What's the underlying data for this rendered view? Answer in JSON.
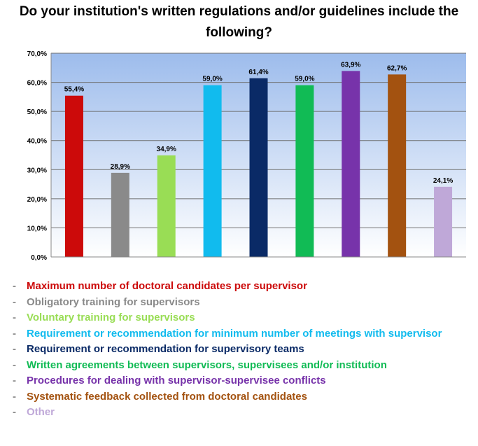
{
  "chart_data": {
    "type": "bar",
    "title": "Do your institution's written regulations and/or guidelines include the following?",
    "xlabel": "",
    "ylabel": "",
    "ylim": [
      0,
      70
    ],
    "yticks": [
      "0,0%",
      "10,0%",
      "20,0%",
      "30,0%",
      "40,0%",
      "50,0%",
      "60,0%",
      "70,0%"
    ],
    "grid": true,
    "legend_placement": "bottom",
    "categories": [
      "Maximum number of doctoral candidates per supervisor",
      "Obligatory training for supervisors",
      "Voluntary training for supervisors",
      "Requirement or recommendation for minimum number of meetings with supervisor",
      "Requirement or recommendation for supervisory teams",
      "Written agreements between supervisors, supervisees and/or institution",
      "Procedures for dealing with supervisor-supervisee conflicts",
      "Systematic feedback collected from doctoral candidates",
      "Other"
    ],
    "values": [
      55.4,
      28.9,
      34.9,
      59.0,
      61.4,
      59.0,
      63.9,
      62.7,
      24.1
    ],
    "data_labels": [
      "55,4%",
      "28,9%",
      "34,9%",
      "59,0%",
      "61,4%",
      "59,0%",
      "63,9%",
      "62,7%",
      "24,1%"
    ],
    "colors": [
      "#cc0a0a",
      "#8a8a8a",
      "#99dd55",
      "#11bbee",
      "#0a2a66",
      "#11bb55",
      "#7733aa",
      "#a35210",
      "#bfa8d8"
    ],
    "legend_dash": "-"
  }
}
